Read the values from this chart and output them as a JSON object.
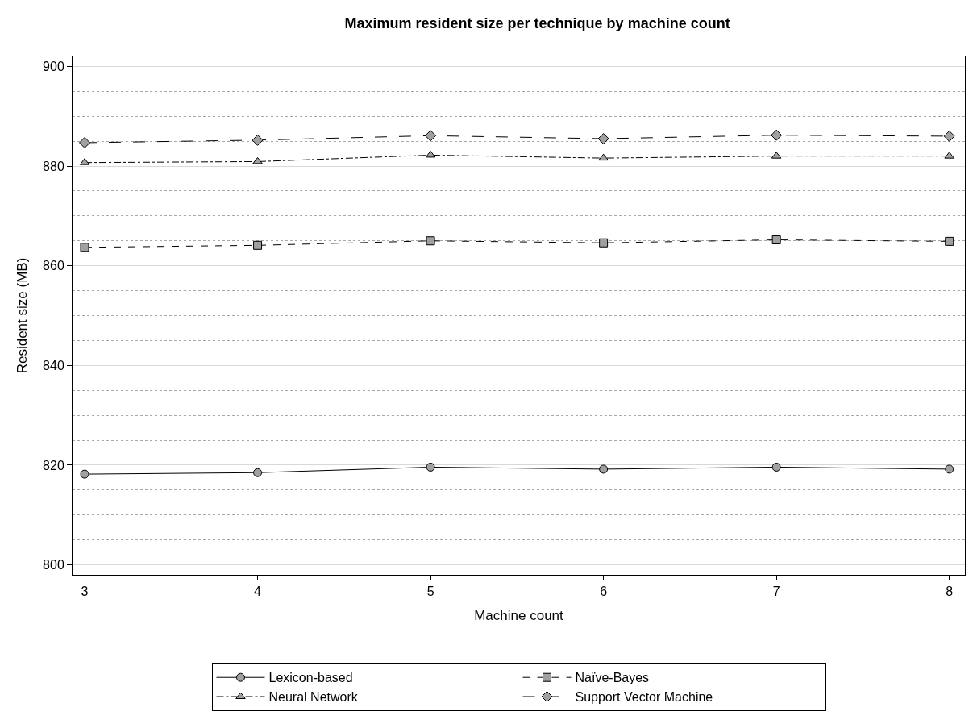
{
  "chart_data": {
    "type": "line",
    "title": "Maximum resident size per technique by machine count",
    "xlabel": "Machine count",
    "ylabel": "Resident size (MB)",
    "x": [
      3,
      4,
      5,
      6,
      7,
      8
    ],
    "series": [
      {
        "name": "Lexicon-based",
        "color": "#a0a0a0",
        "marker": "circle",
        "line_style": "solid",
        "values": [
          818.2,
          818.5,
          819.6,
          819.2,
          819.6,
          819.2
        ]
      },
      {
        "name": "Naïve-Bayes",
        "color": "#a0a0a0",
        "marker": "square",
        "line_style": "dashed",
        "values": [
          863.7,
          864.1,
          865.0,
          864.6,
          865.2,
          864.9
        ]
      },
      {
        "name": "Neural Network",
        "color": "#a0a0a0",
        "marker": "triangle",
        "line_style": "dashdot",
        "values": [
          880.7,
          880.9,
          882.2,
          881.6,
          882.0,
          882.0
        ]
      },
      {
        "name": "Support Vector Machine",
        "color": "#a0a0a0",
        "marker": "diamond",
        "line_style": "longdash",
        "values": [
          884.7,
          885.2,
          886.1,
          885.5,
          886.2,
          886.0
        ]
      }
    ],
    "xlim": [
      2.93,
      8.09
    ],
    "xticks": [
      3,
      4,
      5,
      6,
      7,
      8
    ],
    "ylim": [
      798,
      902
    ],
    "yticks": [
      800,
      820,
      840,
      860,
      880,
      900
    ],
    "grid": "y",
    "legend": "bottom"
  }
}
